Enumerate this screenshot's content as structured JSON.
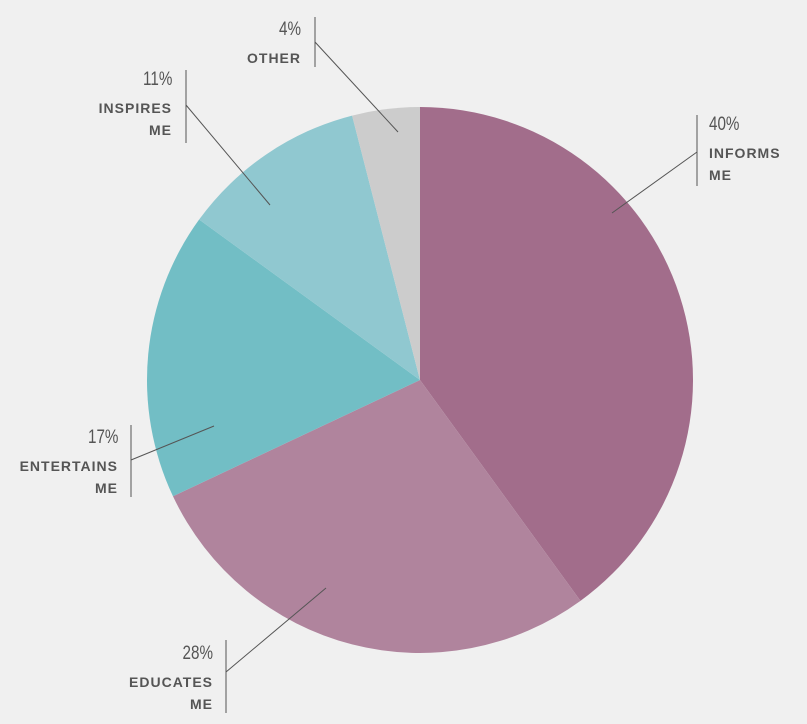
{
  "chart_data": {
    "type": "pie",
    "categories": [
      "INFORMS ME",
      "EDUCATES ME",
      "ENTERTAINS ME",
      "INSPIRES ME",
      "OTHER"
    ],
    "values": [
      40,
      28,
      17,
      11,
      4
    ],
    "value_labels": [
      "40%",
      "28%",
      "17%",
      "11%",
      "4%"
    ],
    "colors": [
      "#a26d8b",
      "#b0849d",
      "#72bec5",
      "#90c8d0",
      "#cccccc"
    ]
  }
}
